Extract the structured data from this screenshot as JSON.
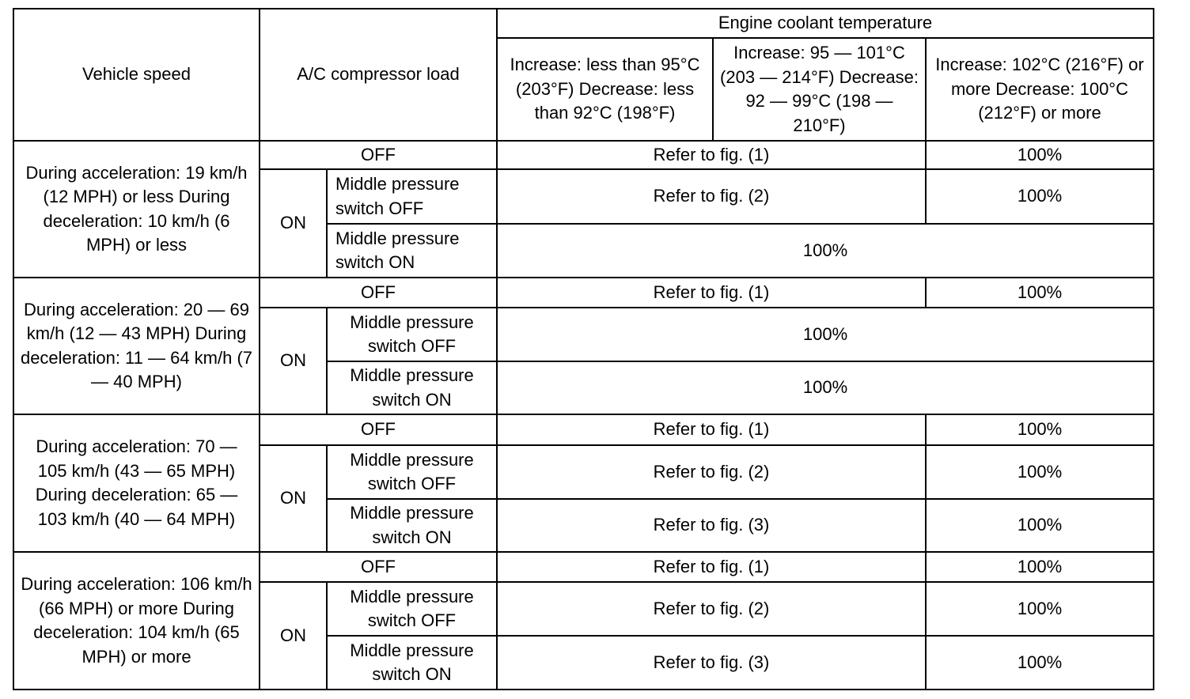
{
  "header": {
    "vehicle_speed": "Vehicle speed",
    "ac_load": "A/C compressor load",
    "coolant": "Engine coolant temperature",
    "temp_ranges": [
      "Increase: less than 95°C (203°F) Decrease: less than 92°C (198°F)",
      "Increase: 95 — 101°C (203 — 214°F) Decrease: 92 — 99°C (198 — 210°F)",
      "Increase: 102°C (216°F) or more Decrease: 100°C (212°F) or more"
    ]
  },
  "labels": {
    "off": "OFF",
    "on": "ON",
    "mp_off": "Middle pressure switch OFF",
    "mp_on": "Middle pressure switch ON"
  },
  "groups": [
    {
      "speed": "During acceleration: 19 km/h (12 MPH) or less During deceleration: 10 km/h (6 MPH) or less",
      "off_row": [
        "Refer to fig. (1)",
        "100%"
      ],
      "mp_off_row": [
        "Refer to fig. (2)",
        "100%"
      ],
      "mp_on_row": [
        "100%"
      ]
    },
    {
      "speed": "During acceleration: 20 — 69 km/h (12 — 43 MPH) During deceleration: 11 — 64 km/h (7 — 40 MPH)",
      "off_row": [
        "Refer to fig. (1)",
        "100%"
      ],
      "mp_off_row": [
        "100%"
      ],
      "mp_on_row": [
        "100%"
      ]
    },
    {
      "speed": "During acceleration: 70 — 105 km/h (43 — 65 MPH) During deceleration: 65 — 103 km/h (40 — 64 MPH)",
      "off_row": [
        "Refer to fig. (1)",
        "100%"
      ],
      "mp_off_row": [
        "Refer to fig. (2)",
        "100%"
      ],
      "mp_on_row": [
        "Refer to fig. (3)",
        "100%"
      ]
    },
    {
      "speed": "During acceleration: 106 km/h (66 MPH) or more During deceleration: 104 km/h (65 MPH) or more",
      "off_row": [
        "Refer to fig. (1)",
        "100%"
      ],
      "mp_off_row": [
        "Refer to fig. (2)",
        "100%"
      ],
      "mp_on_row": [
        "Refer to fig. (3)",
        "100%"
      ]
    }
  ]
}
